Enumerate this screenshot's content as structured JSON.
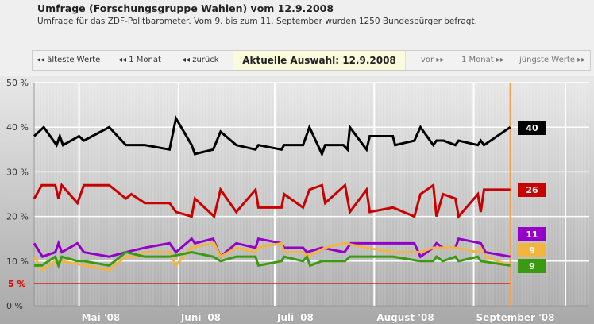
{
  "header": {
    "title": "Umfrage (Forschungsgruppe Wahlen) vom 12.9.2008",
    "subtitle": "Umfrage für das ZDF-Politbarometer. Vom 9. bis zum 11. September wurden 1250 Bundesbürger befragt."
  },
  "nav": {
    "oldest": "◂◂ älteste Werte",
    "month_back": "◂◂ 1 Monat",
    "back": "◂◂ zurück",
    "current": "Aktuelle Auswahl: 12.9.2008",
    "forward": "vor ▸▸",
    "month_forward": "1 Monat ▸▸",
    "newest": "jüngste Werte ▸▸"
  },
  "chart_data": {
    "type": "line",
    "xunit": "days since 1 April 2008",
    "xlim": [
      16,
      189
    ],
    "ylim": [
      0,
      50
    ],
    "yticks": [
      "0 %",
      "10 %",
      "20 %",
      "30 %",
      "40 %",
      "50 %"
    ],
    "threshold": {
      "value": 5,
      "label": "5 %",
      "color": "#e00000"
    },
    "months": [
      {
        "label": "Mai '08",
        "day": 30
      },
      {
        "label": "Juni '08",
        "day": 61
      },
      {
        "label": "Juli '08",
        "day": 91
      },
      {
        "label": "August '08",
        "day": 122
      },
      {
        "label": "September '08",
        "day": 153
      }
    ],
    "current_day": 164.4,
    "series": [
      {
        "name": "black",
        "color": "#000000",
        "last": "40",
        "points": [
          [
            16,
            38
          ],
          [
            19,
            40
          ],
          [
            23,
            36
          ],
          [
            24,
            38
          ],
          [
            25,
            36
          ],
          [
            30,
            38
          ],
          [
            31.5,
            37
          ],
          [
            39.4,
            40
          ],
          [
            44.6,
            36
          ],
          [
            50.5,
            36
          ],
          [
            58.2,
            35
          ],
          [
            60.2,
            42
          ],
          [
            65.1,
            36
          ],
          [
            66.1,
            34
          ],
          [
            71.8,
            35
          ],
          [
            74.1,
            39
          ],
          [
            79,
            36
          ],
          [
            85,
            35
          ],
          [
            85.9,
            36
          ],
          [
            93.1,
            35
          ],
          [
            93.9,
            36
          ],
          [
            99.8,
            36
          ],
          [
            101.8,
            40
          ],
          [
            105.7,
            34
          ],
          [
            106.7,
            36
          ],
          [
            112.4,
            36
          ],
          [
            113.7,
            35
          ],
          [
            114.4,
            40
          ],
          [
            119.6,
            35
          ],
          [
            120.6,
            38
          ],
          [
            127.8,
            38
          ],
          [
            128.5,
            36
          ],
          [
            134.5,
            37
          ],
          [
            136.4,
            40
          ],
          [
            140.4,
            36
          ],
          [
            141.4,
            37
          ],
          [
            143.6,
            37
          ],
          [
            147.3,
            36
          ],
          [
            148.3,
            37
          ],
          [
            154.3,
            36
          ],
          [
            155.2,
            37
          ],
          [
            156.2,
            36
          ],
          [
            164.4,
            40
          ]
        ]
      },
      {
        "name": "red",
        "color": "#c80000",
        "last": "26",
        "points": [
          [
            16,
            24
          ],
          [
            18.4,
            27
          ],
          [
            22.6,
            27
          ],
          [
            23.6,
            24
          ],
          [
            24.6,
            27
          ],
          [
            29.5,
            23
          ],
          [
            31.5,
            27
          ],
          [
            39.4,
            27
          ],
          [
            44.6,
            24
          ],
          [
            46.3,
            25
          ],
          [
            50.5,
            23
          ],
          [
            58.2,
            23
          ],
          [
            60.2,
            21
          ],
          [
            65.1,
            20
          ],
          [
            66.1,
            24
          ],
          [
            72.1,
            20
          ],
          [
            74.1,
            26
          ],
          [
            79,
            21
          ],
          [
            85,
            26
          ],
          [
            85.9,
            22
          ],
          [
            93.1,
            22
          ],
          [
            93.9,
            25
          ],
          [
            99.8,
            22
          ],
          [
            101.8,
            26
          ],
          [
            105.7,
            27
          ],
          [
            106.7,
            23
          ],
          [
            112.9,
            27
          ],
          [
            114.4,
            21
          ],
          [
            119.6,
            26
          ],
          [
            120.6,
            21
          ],
          [
            127.8,
            22
          ],
          [
            134.5,
            20
          ],
          [
            136.4,
            25
          ],
          [
            140.4,
            27
          ],
          [
            141.4,
            20
          ],
          [
            143.4,
            25
          ],
          [
            147.3,
            24
          ],
          [
            148.3,
            20
          ],
          [
            154.3,
            25
          ],
          [
            155.2,
            21
          ],
          [
            156.2,
            26
          ],
          [
            164.4,
            26
          ]
        ]
      },
      {
        "name": "purple",
        "color": "#9400c8",
        "last": "11",
        "points": [
          [
            16,
            14
          ],
          [
            18.6,
            11
          ],
          [
            22.6,
            12
          ],
          [
            23.6,
            14
          ],
          [
            24.6,
            12
          ],
          [
            29.5,
            14
          ],
          [
            31.5,
            12
          ],
          [
            39.4,
            11
          ],
          [
            44.6,
            12
          ],
          [
            50.5,
            13
          ],
          [
            58.2,
            14
          ],
          [
            60.2,
            12
          ],
          [
            65.1,
            15
          ],
          [
            66.1,
            14
          ],
          [
            71.8,
            15
          ],
          [
            74.1,
            11
          ],
          [
            79,
            14
          ],
          [
            85,
            13
          ],
          [
            85.9,
            15
          ],
          [
            93.1,
            14
          ],
          [
            93.9,
            13
          ],
          [
            99.8,
            13
          ],
          [
            101,
            12
          ],
          [
            105.7,
            13
          ],
          [
            112.7,
            12
          ],
          [
            114.7,
            14
          ],
          [
            119.6,
            14
          ],
          [
            134.5,
            14
          ],
          [
            136.4,
            11
          ],
          [
            140.4,
            13
          ],
          [
            141.4,
            14
          ],
          [
            143.4,
            13
          ],
          [
            147.3,
            13
          ],
          [
            148.3,
            15
          ],
          [
            155.2,
            14
          ],
          [
            156.7,
            12
          ],
          [
            164.4,
            11
          ]
        ]
      },
      {
        "name": "yellow",
        "color": "#f2b640",
        "last": "9",
        "points": [
          [
            16,
            11
          ],
          [
            18.6,
            8
          ],
          [
            22.6,
            10
          ],
          [
            24.6,
            10
          ],
          [
            39.4,
            8
          ],
          [
            44.6,
            11
          ],
          [
            47.3,
            11
          ],
          [
            50.5,
            12
          ],
          [
            58.2,
            12
          ],
          [
            60.2,
            9
          ],
          [
            64.7,
            13
          ],
          [
            72.1,
            14
          ],
          [
            74.1,
            11
          ],
          [
            79,
            13
          ],
          [
            85,
            12
          ],
          [
            85.9,
            13
          ],
          [
            93.1,
            14
          ],
          [
            93.9,
            12
          ],
          [
            99.8,
            12
          ],
          [
            101,
            11
          ],
          [
            106.7,
            13
          ],
          [
            112.7,
            14
          ],
          [
            119.6,
            13
          ],
          [
            127.8,
            12
          ],
          [
            136.4,
            12
          ],
          [
            140.4,
            13
          ],
          [
            147.3,
            13
          ],
          [
            154.3,
            12
          ],
          [
            155.2,
            13
          ],
          [
            156.7,
            11
          ],
          [
            164.4,
            9
          ]
        ]
      },
      {
        "name": "green",
        "color": "#3a9a10",
        "last": "9",
        "points": [
          [
            16,
            9
          ],
          [
            18.4,
            9
          ],
          [
            22.6,
            11
          ],
          [
            23.6,
            9
          ],
          [
            24.6,
            11
          ],
          [
            29.5,
            10
          ],
          [
            31.5,
            10
          ],
          [
            39.4,
            9
          ],
          [
            44.6,
            12
          ],
          [
            50.5,
            11
          ],
          [
            58.2,
            11
          ],
          [
            65.1,
            12
          ],
          [
            71.8,
            11
          ],
          [
            74.1,
            10
          ],
          [
            79,
            11
          ],
          [
            85,
            11
          ],
          [
            85.9,
            9
          ],
          [
            93.1,
            10
          ],
          [
            93.9,
            11
          ],
          [
            99.8,
            10
          ],
          [
            101,
            11
          ],
          [
            102,
            9
          ],
          [
            105.7,
            10
          ],
          [
            112.9,
            10
          ],
          [
            114.4,
            11
          ],
          [
            127.8,
            11
          ],
          [
            136.4,
            10
          ],
          [
            140.4,
            10
          ],
          [
            141.4,
            11
          ],
          [
            143.4,
            10
          ],
          [
            147.3,
            11
          ],
          [
            148.3,
            10
          ],
          [
            154.3,
            11
          ],
          [
            155.2,
            10
          ],
          [
            164.4,
            9
          ]
        ]
      }
    ]
  }
}
